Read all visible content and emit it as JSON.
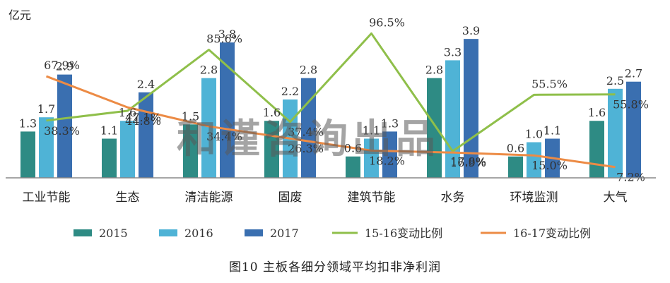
{
  "unit_label": "亿元",
  "caption": "图10 主板各细分领域平均扣非净利润",
  "watermark": "和谨咨询出品",
  "colors": {
    "s2015": "#2e8b84",
    "s2016": "#4fb3d6",
    "s2017": "#3a6fb0",
    "r1516": "#8fbf4a",
    "r1617": "#ec8b45",
    "axis": "#888888"
  },
  "chart_data": {
    "type": "bar",
    "categories": [
      "工业节能",
      "生态",
      "清洁能源",
      "固废",
      "建筑节能",
      "水务",
      "环境监测",
      "大气"
    ],
    "series": [
      {
        "name": "2015",
        "values": [
          1.3,
          1.1,
          1.5,
          1.6,
          0.6,
          2.8,
          0.6,
          1.6
        ],
        "labels": [
          "1.3",
          "1.1",
          "1.5",
          "1.6",
          "0.6",
          "2.8",
          "0.6",
          "1.6"
        ]
      },
      {
        "name": "2016",
        "values": [
          1.7,
          1.6,
          2.8,
          2.2,
          1.1,
          3.3,
          1.0,
          2.5
        ],
        "labels": [
          "1.7",
          "1.6",
          "2.8",
          "2.2",
          "1.1",
          "3.3",
          "1.0",
          "2.5"
        ]
      },
      {
        "name": "2017",
        "values": [
          2.9,
          2.4,
          3.8,
          2.8,
          1.3,
          3.9,
          1.1,
          2.7
        ],
        "labels": [
          "2.9",
          "2.4",
          "3.8",
          "2.8",
          "1.3",
          "3.9",
          "1.1",
          "2.7"
        ]
      }
    ],
    "lines": [
      {
        "name": "15-16变动比例",
        "values": [
          38.3,
          44.8,
          85.6,
          37.4,
          96.5,
          17.8,
          55.5,
          55.8
        ],
        "labels": [
          "38.3%",
          "44.8%",
          "85.6%",
          "37.4%",
          "96.5%",
          "17.8%",
          "55.5%",
          "55.8%"
        ]
      },
      {
        "name": "16-17变动比例",
        "values": [
          67.9,
          47.1,
          34.4,
          26.3,
          18.2,
          16.9,
          15.0,
          7.2
        ],
        "labels": [
          "67.9%",
          "47.1%",
          "34.4%",
          "26.3%",
          "18.2%",
          "16.9%",
          "15.0%",
          "7.2%"
        ]
      }
    ],
    "ylim": [
      0,
      4.2
    ],
    "y2lim": [
      0,
      100
    ],
    "grid": false,
    "legend": "bottom"
  }
}
